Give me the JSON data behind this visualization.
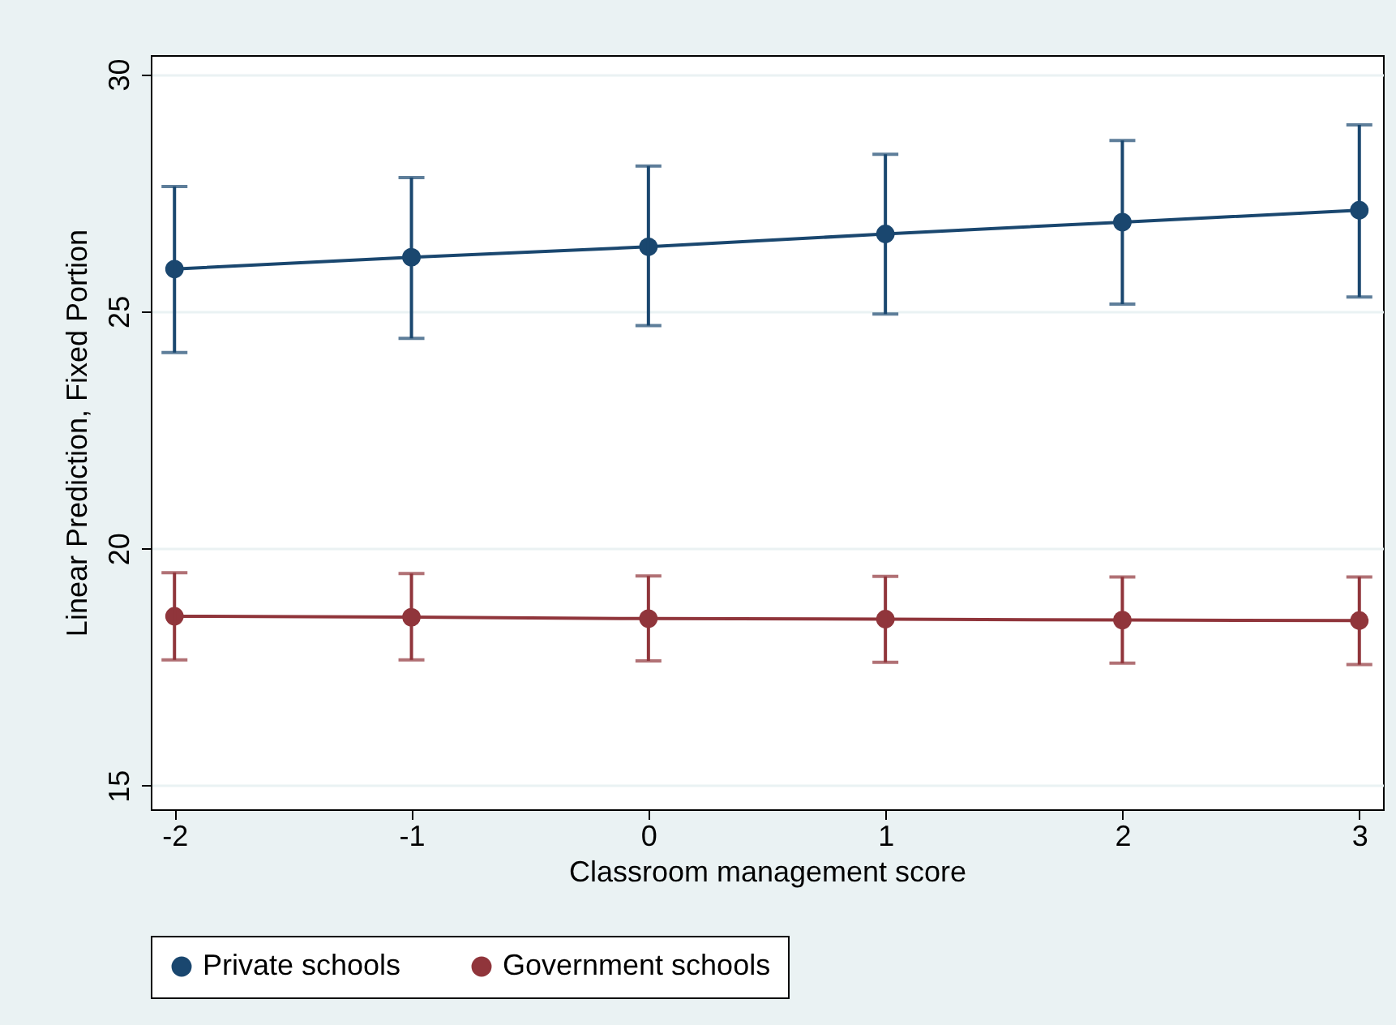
{
  "chart_data": {
    "type": "line",
    "xlabel": "Classroom management score",
    "ylabel": "Linear Prediction, Fixed Portion",
    "x": [
      -2,
      -1,
      0,
      1,
      2,
      3
    ],
    "series": [
      {
        "name": "Private schools",
        "color": "#1a476f",
        "values": [
          25.89,
          26.14,
          26.36,
          26.63,
          26.88,
          27.13
        ],
        "errors": [
          [
            24.13,
            27.63
          ],
          [
            24.43,
            27.82
          ],
          [
            24.7,
            28.06
          ],
          [
            24.94,
            28.31
          ],
          [
            25.15,
            28.6
          ],
          [
            25.3,
            28.93
          ]
        ]
      },
      {
        "name": "Government schools",
        "color": "#90353b",
        "values": [
          18.57,
          18.55,
          18.52,
          18.51,
          18.49,
          18.48
        ],
        "errors": [
          [
            17.65,
            19.49
          ],
          [
            17.65,
            19.47
          ],
          [
            17.63,
            19.42
          ],
          [
            17.6,
            19.41
          ],
          [
            17.58,
            19.4
          ],
          [
            17.55,
            19.4
          ]
        ]
      }
    ],
    "xlim": [
      -2.1,
      3.1
    ],
    "ylim": [
      14.5,
      30.4
    ],
    "xticks": [
      -2,
      -1,
      0,
      1,
      2,
      3
    ],
    "yticks": [
      15,
      20,
      25,
      30
    ],
    "grid": "y",
    "legend": "bottom",
    "marker": "circle",
    "line_style": "solid"
  }
}
